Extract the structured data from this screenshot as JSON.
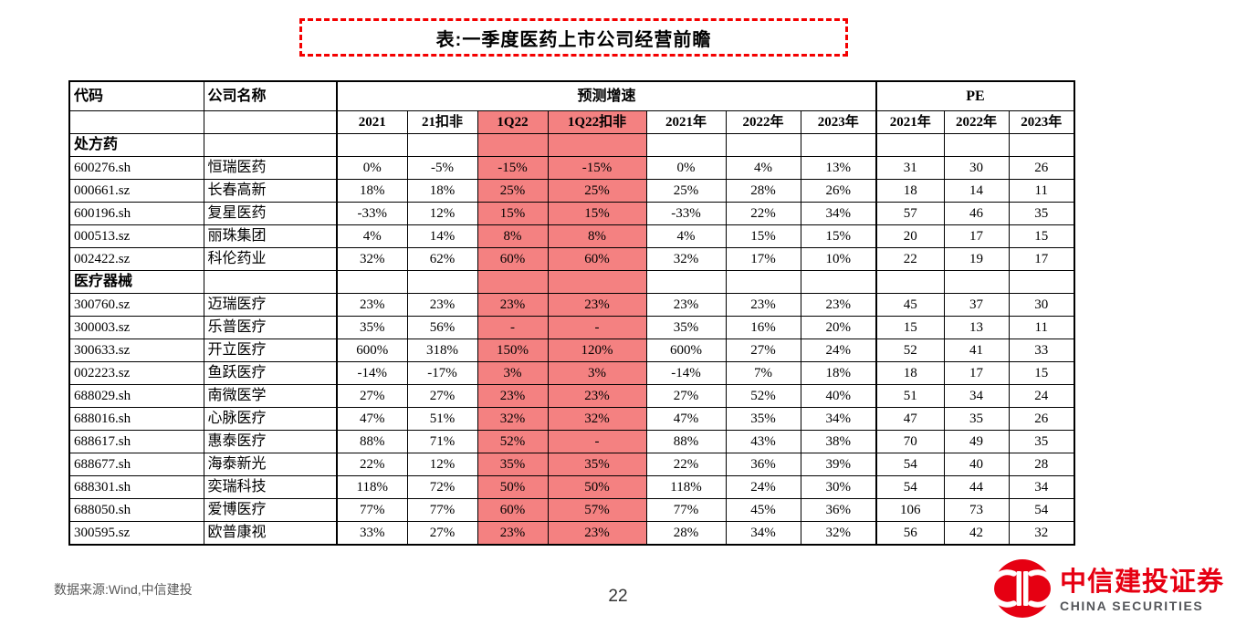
{
  "title": {
    "text": "表:一季度医药上市公司经营前瞻"
  },
  "table": {
    "headers": {
      "code": "代码",
      "company": "公司名称",
      "growth_group": "预测增速",
      "pe_group": "PE"
    },
    "sub_headers": [
      "2021",
      "21扣非",
      "1Q22",
      "1Q22扣非",
      "2021年",
      "2022年",
      "2023年",
      "2021年",
      "2022年",
      "2023年"
    ],
    "highlight_indices": [
      2,
      3
    ],
    "highlight_color": "#F48181",
    "sections": [
      {
        "name": "处方药",
        "rows": [
          {
            "code": "600276.sh",
            "company": "恒瑞医药",
            "values": [
              "0%",
              "-5%",
              "-15%",
              "-15%",
              "0%",
              "4%",
              "13%",
              "31",
              "30",
              "26"
            ]
          },
          {
            "code": "000661.sz",
            "company": "长春高新",
            "values": [
              "18%",
              "18%",
              "25%",
              "25%",
              "25%",
              "28%",
              "26%",
              "18",
              "14",
              "11"
            ]
          },
          {
            "code": "600196.sh",
            "company": "复星医药",
            "values": [
              "-33%",
              "12%",
              "15%",
              "15%",
              "-33%",
              "22%",
              "34%",
              "57",
              "46",
              "35"
            ]
          },
          {
            "code": "000513.sz",
            "company": "丽珠集团",
            "values": [
              "4%",
              "14%",
              "8%",
              "8%",
              "4%",
              "15%",
              "15%",
              "20",
              "17",
              "15"
            ]
          },
          {
            "code": "002422.sz",
            "company": "科伦药业",
            "values": [
              "32%",
              "62%",
              "60%",
              "60%",
              "32%",
              "17%",
              "10%",
              "22",
              "19",
              "17"
            ]
          }
        ]
      },
      {
        "name": "医疗器械",
        "rows": [
          {
            "code": "300760.sz",
            "company": "迈瑞医疗",
            "values": [
              "23%",
              "23%",
              "23%",
              "23%",
              "23%",
              "23%",
              "23%",
              "45",
              "37",
              "30"
            ]
          },
          {
            "code": "300003.sz",
            "company": "乐普医疗",
            "values": [
              "35%",
              "56%",
              "-",
              "-",
              "35%",
              "16%",
              "20%",
              "15",
              "13",
              "11"
            ]
          },
          {
            "code": "300633.sz",
            "company": "开立医疗",
            "values": [
              "600%",
              "318%",
              "150%",
              "120%",
              "600%",
              "27%",
              "24%",
              "52",
              "41",
              "33"
            ]
          },
          {
            "code": "002223.sz",
            "company": "鱼跃医疗",
            "values": [
              "-14%",
              "-17%",
              "3%",
              "3%",
              "-14%",
              "7%",
              "18%",
              "18",
              "17",
              "15"
            ]
          },
          {
            "code": "688029.sh",
            "company": "南微医学",
            "values": [
              "27%",
              "27%",
              "23%",
              "23%",
              "27%",
              "52%",
              "40%",
              "51",
              "34",
              "24"
            ]
          },
          {
            "code": "688016.sh",
            "company": "心脉医疗",
            "values": [
              "47%",
              "51%",
              "32%",
              "32%",
              "47%",
              "35%",
              "34%",
              "47",
              "35",
              "26"
            ]
          },
          {
            "code": "688617.sh",
            "company": "惠泰医疗",
            "values": [
              "88%",
              "71%",
              "52%",
              "-",
              "88%",
              "43%",
              "38%",
              "70",
              "49",
              "35"
            ]
          },
          {
            "code": "688677.sh",
            "company": "海泰新光",
            "values": [
              "22%",
              "12%",
              "35%",
              "35%",
              "22%",
              "36%",
              "39%",
              "54",
              "40",
              "28"
            ]
          },
          {
            "code": "688301.sh",
            "company": "奕瑞科技",
            "values": [
              "118%",
              "72%",
              "50%",
              "50%",
              "118%",
              "24%",
              "30%",
              "54",
              "44",
              "34"
            ]
          },
          {
            "code": "688050.sh",
            "company": "爱博医疗",
            "values": [
              "77%",
              "77%",
              "60%",
              "57%",
              "77%",
              "45%",
              "36%",
              "106",
              "73",
              "54"
            ]
          },
          {
            "code": "300595.sz",
            "company": "欧普康视",
            "values": [
              "33%",
              "27%",
              "23%",
              "23%",
              "28%",
              "34%",
              "32%",
              "56",
              "42",
              "32"
            ]
          }
        ]
      }
    ]
  },
  "footer": {
    "source": "数据来源:Wind,中信建投",
    "page": "22"
  },
  "logo": {
    "cn": "中信建投证券",
    "en": "CHINA SECURITIES",
    "accent": "#E60012"
  }
}
